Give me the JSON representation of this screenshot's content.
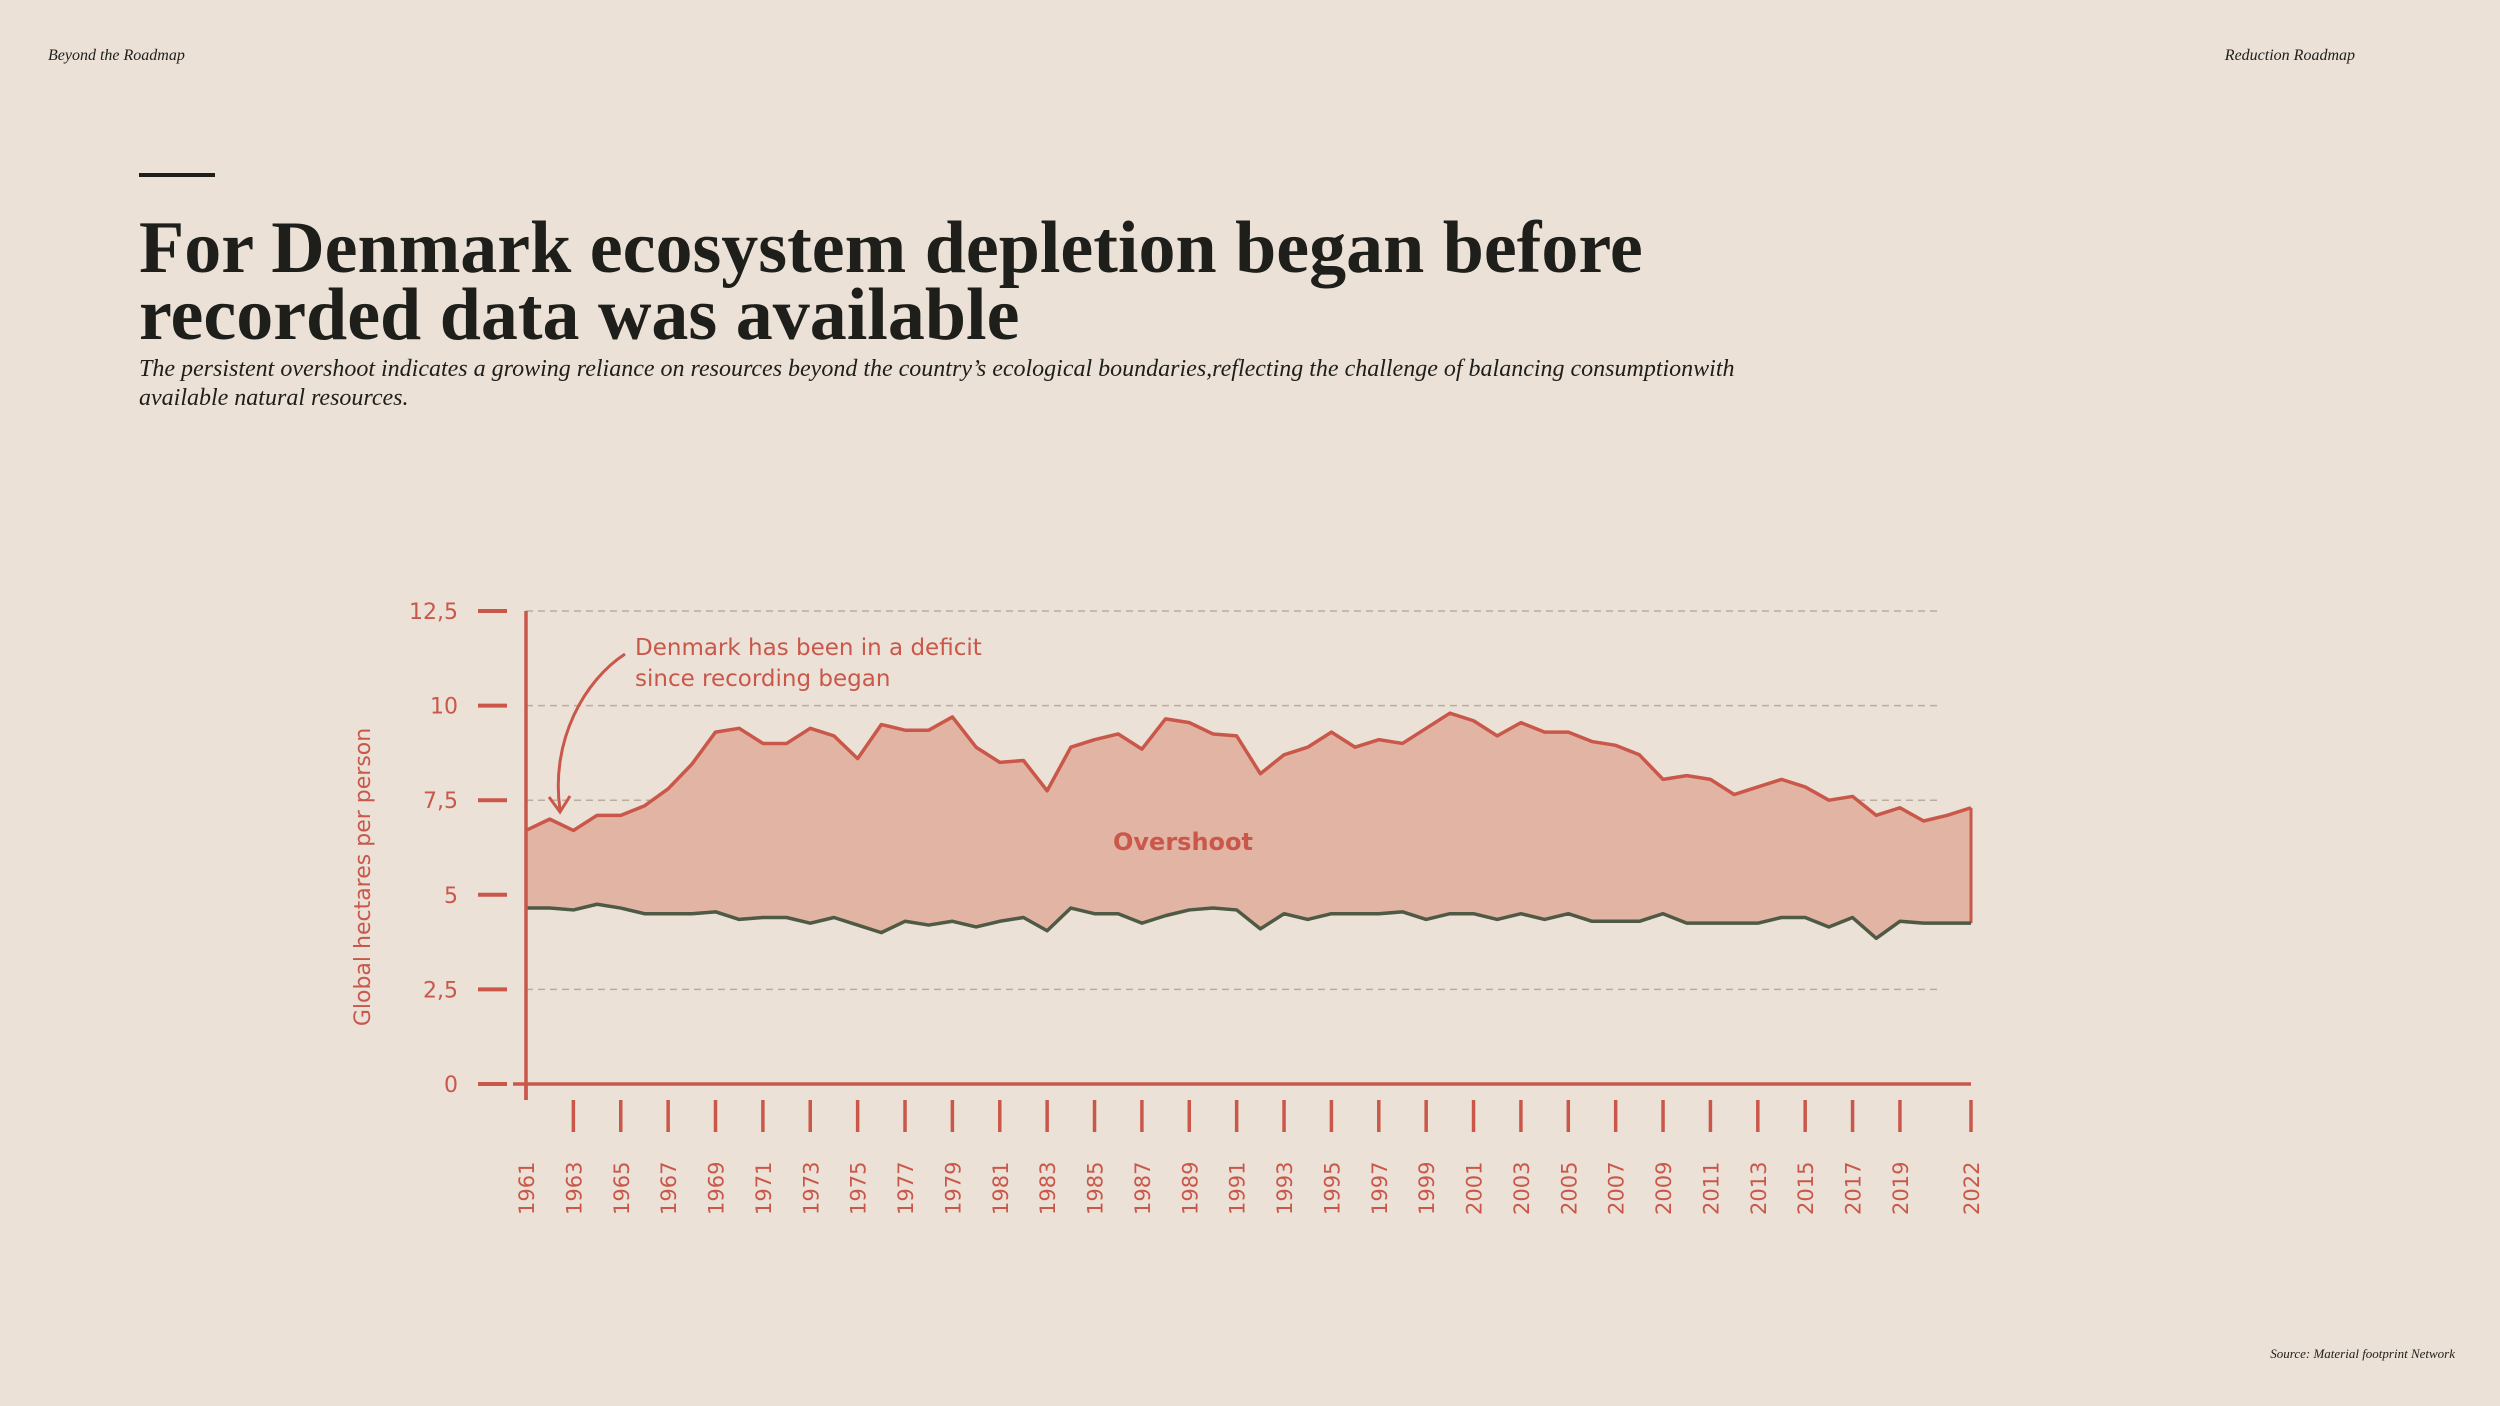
{
  "header": {
    "left": "Beyond the Roadmap",
    "right": "Reduction Roadmap"
  },
  "source": "Source: Material footprint Network",
  "chart_data": {
    "type": "line",
    "title": "For Denmark ecosystem depletion began before recorded data was available",
    "subtitle": "The persistent overshoot indicates a growing reliance on resources beyond the country’s ecological boundaries,reflecting the challenge of balancing consumptionwith available natural resources.",
    "y_label": "Global hectares per person",
    "annotation": [
      "Denmark has been in a deficit",
      "since recording began"
    ],
    "area_label": "Overshoot",
    "x": [
      1961,
      1962,
      1963,
      1964,
      1965,
      1966,
      1967,
      1968,
      1969,
      1970,
      1971,
      1972,
      1973,
      1974,
      1975,
      1976,
      1977,
      1978,
      1979,
      1980,
      1981,
      1982,
      1983,
      1984,
      1985,
      1986,
      1987,
      1988,
      1989,
      1990,
      1991,
      1992,
      1993,
      1994,
      1995,
      1996,
      1997,
      1998,
      1999,
      2000,
      2001,
      2002,
      2003,
      2004,
      2005,
      2006,
      2007,
      2008,
      2009,
      2010,
      2011,
      2012,
      2013,
      2014,
      2015,
      2016,
      2017,
      2018,
      2019,
      2020,
      2021,
      2022
    ],
    "series": [
      {
        "color": "#c9584a",
        "values": [
          6.7,
          7.0,
          6.7,
          7.1,
          7.1,
          7.35,
          7.8,
          8.45,
          9.3,
          9.4,
          9.0,
          9.0,
          9.4,
          9.2,
          8.6,
          9.5,
          9.35,
          9.35,
          9.7,
          8.9,
          8.5,
          8.55,
          7.75,
          8.9,
          9.1,
          9.25,
          8.85,
          9.65,
          9.55,
          9.25,
          9.2,
          8.2,
          8.7,
          8.9,
          9.3,
          8.9,
          9.1,
          9.0,
          9.4,
          9.8,
          9.6,
          9.2,
          9.55,
          9.3,
          9.3,
          9.05,
          8.95,
          8.7,
          8.05,
          8.15,
          8.05,
          7.65,
          7.85,
          8.05,
          7.85,
          7.5,
          7.6,
          7.1,
          7.3,
          6.95,
          7.1,
          7.3
        ]
      },
      {
        "color": "#4f5a44",
        "values": [
          4.65,
          4.65,
          4.6,
          4.75,
          4.65,
          4.5,
          4.5,
          4.5,
          4.55,
          4.35,
          4.4,
          4.4,
          4.25,
          4.4,
          4.2,
          4.0,
          4.3,
          4.2,
          4.3,
          4.15,
          4.3,
          4.4,
          4.05,
          4.65,
          4.5,
          4.5,
          4.25,
          4.45,
          4.6,
          4.65,
          4.6,
          4.1,
          4.5,
          4.35,
          4.5,
          4.5,
          4.5,
          4.55,
          4.35,
          4.5,
          4.5,
          4.35,
          4.5,
          4.35,
          4.5,
          4.3,
          4.3,
          4.3,
          4.5,
          4.25,
          4.25,
          4.25,
          4.25,
          4.4,
          4.4,
          4.15,
          4.4,
          3.85,
          4.3,
          4.25,
          4.25,
          4.25
        ]
      }
    ],
    "fill_color": "#e2b4a4",
    "xlim": [
      1961,
      2022
    ],
    "xticks": [
      1961,
      1963,
      1965,
      1967,
      1969,
      1971,
      1973,
      1975,
      1977,
      1979,
      1981,
      1983,
      1985,
      1987,
      1989,
      1991,
      1993,
      1995,
      1997,
      1999,
      2001,
      2003,
      2005,
      2007,
      2009,
      2011,
      2013,
      2015,
      2017,
      2019,
      2022
    ],
    "ylim": [
      0,
      12.5
    ],
    "yticks": [
      0,
      {
        "value": 2.5,
        "label": "2,5"
      },
      5,
      {
        "value": 7.5,
        "label": "7,5"
      },
      10,
      {
        "value": 12.5,
        "label": "12,5"
      }
    ],
    "grid": true
  }
}
